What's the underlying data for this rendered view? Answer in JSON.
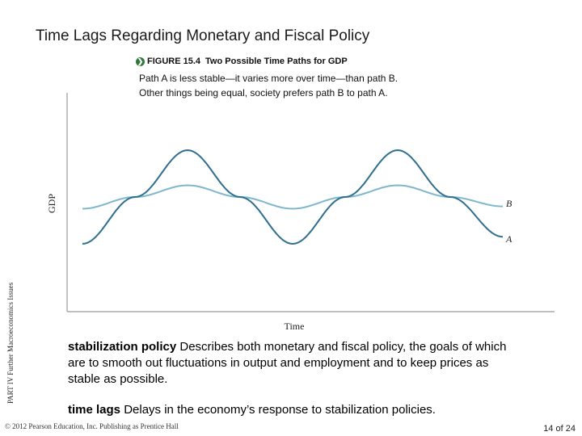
{
  "slide": {
    "title": "Time Lags Regarding Monetary and Fiscal Policy",
    "part_label": "PART IV  Further Macroeconomics Issues",
    "copyright": "© 2012 Pearson Education, Inc. Publishing as Prentice Hall",
    "page_number": "14 of 24"
  },
  "figure": {
    "label": "FIGURE 15.4",
    "caption": "Two Possible Time Paths for GDP",
    "description_lines": [
      "Path A is less stable—it varies more over time—than path B.",
      "Other things being equal, society prefers path B to path A."
    ]
  },
  "definitions": [
    {
      "term": "stabilization policy",
      "text": "Describes both monetary and fiscal policy, the goals of which are to smooth out fluctuations in output and employment and to keep prices as stable as possible."
    },
    {
      "term": "time lags",
      "text": "Delays in the economy’s response to stabilization policies."
    }
  ],
  "chart_data": {
    "type": "line",
    "xlabel": "Time",
    "ylabel": "GDP",
    "grid": false,
    "colors": {
      "A": "#2f6f8f",
      "B": "#7fb8cc"
    },
    "series": [
      {
        "name": "A",
        "x": [
          0,
          0.125,
          0.25,
          0.375,
          0.5,
          0.625,
          0.75,
          0.875,
          1.0
        ],
        "y": [
          -1.0,
          0.0,
          1.0,
          0.0,
          -1.0,
          0.0,
          1.0,
          0.0,
          -0.85
        ]
      },
      {
        "name": "B",
        "x": [
          0,
          0.125,
          0.25,
          0.375,
          0.5,
          0.625,
          0.75,
          0.875,
          1.0
        ],
        "y": [
          -0.25,
          0.0,
          0.25,
          0.0,
          -0.25,
          0.0,
          0.25,
          0.0,
          -0.2
        ]
      }
    ]
  }
}
